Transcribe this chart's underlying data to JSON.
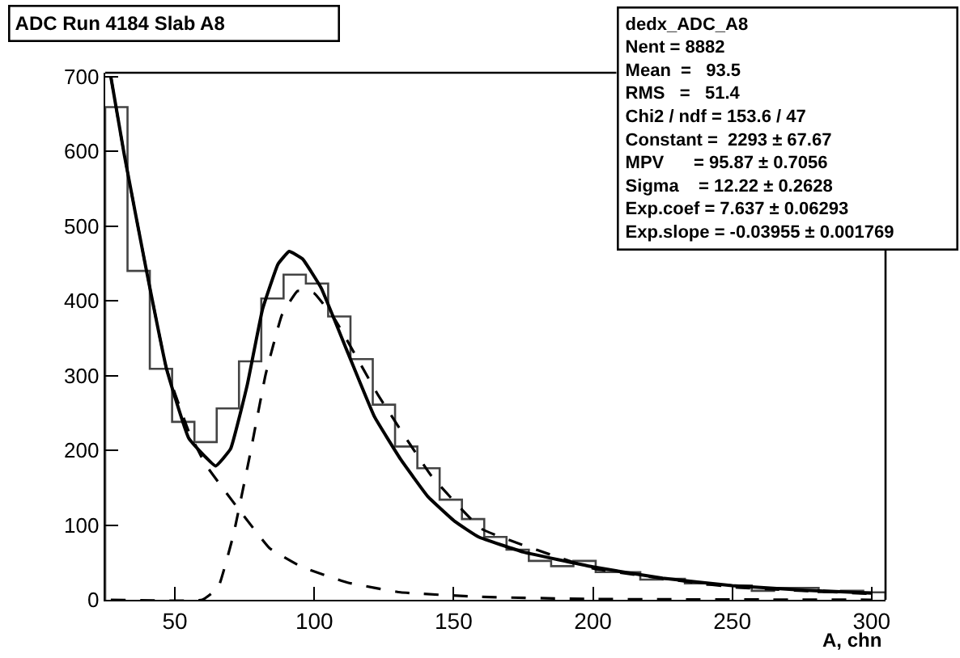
{
  "chart_data": {
    "type": "histogram",
    "title": "ADC Run 4184 Slab A8",
    "xlabel": "A, chn",
    "xlim": [
      25,
      305
    ],
    "ylim": [
      0,
      705
    ],
    "xticks": [
      50,
      100,
      150,
      200,
      250,
      300
    ],
    "yticks": [
      0,
      100,
      200,
      300,
      400,
      500,
      600,
      700
    ],
    "annotations": [
      "dedx_ADC_A8",
      "Nent = 8882",
      "Mean  =   93.5",
      "RMS   =   51.4",
      "Chi2 / ndf = 153.6 / 47",
      "Constant =  2293 ± 67.67",
      "MPV      = 95.87 ± 0.7056",
      "Sigma    = 12.22 ± 0.2628",
      "Exp.coef = 7.637 ± 0.06293",
      "Exp.slope = -0.03955 ± 0.001769"
    ],
    "series": [
      {
        "color": "#444444",
        "bins": [
          25,
          33,
          41,
          49,
          57,
          65,
          73,
          81,
          89,
          97,
          105,
          113,
          121,
          129,
          137,
          145,
          153,
          161,
          169,
          177,
          185,
          193,
          201,
          209,
          217,
          225,
          233,
          241,
          249,
          257,
          265,
          273,
          281,
          289,
          297,
          305
        ],
        "values": [
          659,
          440,
          309,
          238,
          211,
          256,
          319,
          403,
          435,
          423,
          379,
          322,
          261,
          205,
          176,
          134,
          108,
          84,
          67,
          52,
          45,
          52,
          37,
          37,
          27,
          28,
          22,
          20,
          19,
          12,
          16,
          16,
          10,
          12,
          10
        ]
      },
      {
        "type": "line",
        "color": "#000000",
        "line_style": "solid",
        "x": [
          27,
          31.8,
          39.5,
          47,
          55,
          64.6,
          70,
          76,
          81.4,
          87,
          91,
          95.8,
          102.5,
          112,
          121.6,
          131,
          140.8,
          150.4,
          159,
          175,
          200,
          225,
          250,
          275,
          300
        ],
        "values": [
          700,
          596,
          446,
          309,
          216,
          179,
          202,
          288,
          388,
          449,
          466,
          456,
          417,
          331,
          245,
          188,
          138,
          105,
          84,
          64,
          44,
          29,
          19,
          13,
          9
        ]
      },
      {
        "type": "line",
        "color": "#000000",
        "line_style": "dashed",
        "x": [
          27,
          31.8,
          39.5,
          47,
          55,
          61,
          72.5,
          84,
          95.5,
          112,
          131,
          159,
          200,
          300
        ],
        "values": [
          700,
          596,
          446,
          309,
          225,
          181,
          123,
          69,
          44,
          23,
          10,
          4,
          1,
          0
        ]
      },
      {
        "type": "line",
        "color": "#000000",
        "line_style": "dashed",
        "x": [
          27,
          59.8,
          65.5,
          71,
          77,
          82.6,
          88.4,
          94,
          100,
          107.6,
          122.9,
          142,
          160,
          200,
          250,
          300
        ],
        "values": [
          0,
          0,
          16,
          87,
          195,
          302,
          381,
          413,
          410,
          374,
          274,
          166,
          95,
          42,
          17,
          8
        ]
      }
    ]
  }
}
